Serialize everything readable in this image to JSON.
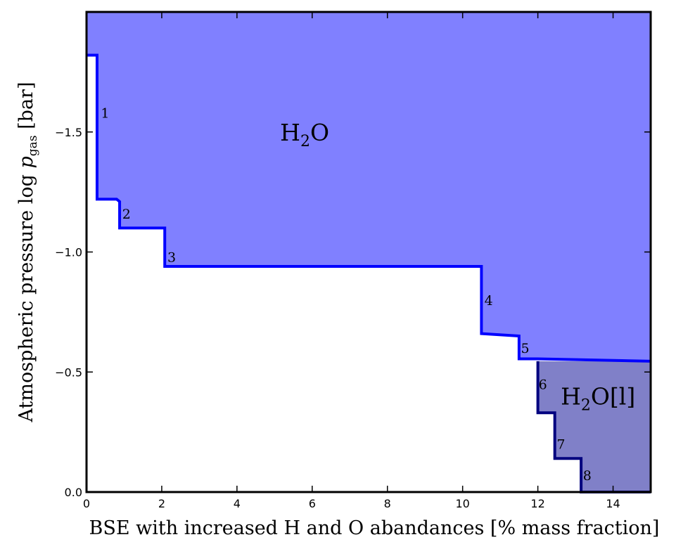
{
  "chart_data": {
    "type": "area",
    "xlabel": "BSE with increased H and O abandances [% mass fraction]",
    "ylabel": {
      "before": "Atmospheric pressure log ",
      "var": "p",
      "sub": "gas",
      "after": " [bar]"
    },
    "xlim": [
      0,
      15
    ],
    "ylim": [
      0.0,
      -2.0
    ],
    "x_ticks": [
      0,
      2,
      4,
      6,
      8,
      10,
      12,
      14
    ],
    "x_tick_labels": [
      "0",
      "2",
      "4",
      "6",
      "8",
      "10",
      "12",
      "14"
    ],
    "y_ticks": [
      0.0,
      -0.5,
      -1.0,
      -1.5
    ],
    "y_tick_labels": [
      "0.0",
      "−0.5",
      "−1.0",
      "−1.5"
    ],
    "grid": false,
    "regions": [
      {
        "name": "H2O",
        "label": {
          "main": "H",
          "sub": "2",
          "rest": "O"
        },
        "label_pos": [
          5.8,
          -1.5
        ],
        "color": "#8080ff"
      },
      {
        "name": "H2O[l]",
        "label": {
          "main": "H",
          "sub": "2",
          "rest": "O[l]"
        },
        "label_pos": [
          13.6,
          -0.4
        ],
        "color": "#8080c8"
      }
    ],
    "series": [
      {
        "id": "h2o-gas-boundary",
        "color": "#0000ff",
        "x": [
          0,
          0.28,
          0.28,
          0.8,
          0.88,
          0.88,
          2.08,
          2.08,
          10.5,
          10.5,
          11.5,
          11.5,
          12.0,
          15.0
        ],
        "y": [
          -1.82,
          -1.82,
          -1.22,
          -1.22,
          -1.21,
          -1.1,
          -1.1,
          -0.94,
          -0.94,
          -0.66,
          -0.65,
          -0.555,
          -0.555,
          -0.545
        ]
      },
      {
        "id": "h2o-liquid-boundary",
        "color": "#00007f",
        "x": [
          12.0,
          12.0,
          12.45,
          12.45,
          13.15,
          13.15,
          15.0
        ],
        "y": [
          -0.545,
          -0.33,
          -0.33,
          -0.14,
          -0.14,
          0.0,
          0.0
        ]
      }
    ],
    "annotations": [
      {
        "text": "1",
        "x": 0.38,
        "y": -1.58
      },
      {
        "text": "2",
        "x": 0.95,
        "y": -1.16
      },
      {
        "text": "3",
        "x": 2.15,
        "y": -0.98
      },
      {
        "text": "4",
        "x": 10.58,
        "y": -0.8
      },
      {
        "text": "5",
        "x": 11.55,
        "y": -0.6
      },
      {
        "text": "6",
        "x": 12.02,
        "y": -0.45
      },
      {
        "text": "7",
        "x": 12.5,
        "y": -0.2
      },
      {
        "text": "8",
        "x": 13.2,
        "y": -0.07
      }
    ]
  }
}
